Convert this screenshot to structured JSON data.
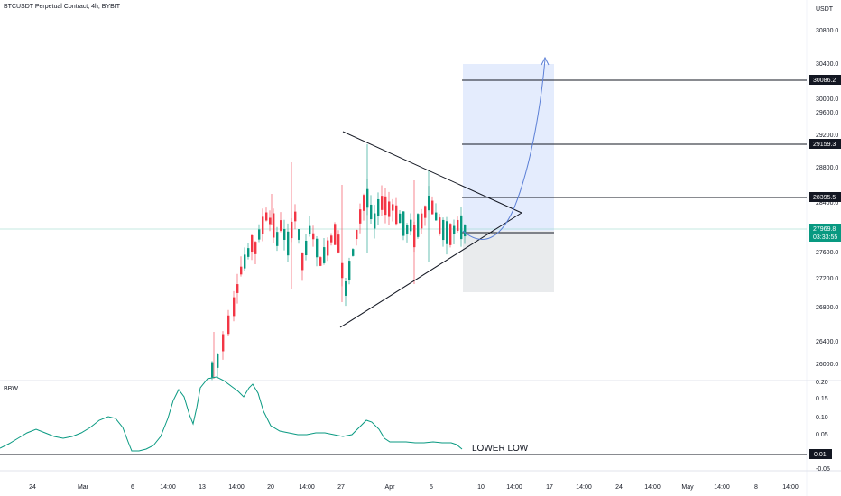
{
  "chart_info": {
    "title": "BTCUSDT Perpetual Contract, 4h, BYBIT",
    "currency": "USDT",
    "indicator_name": "BBW"
  },
  "price_axis": {
    "ticks": [
      "30800.0",
      "30400.0",
      "30000.0",
      "29600.0",
      "29200.0",
      "28800.0",
      "28400.0",
      "28000.0",
      "27600.0",
      "27200.0",
      "26800.0",
      "26400.0",
      "26000.0"
    ]
  },
  "bbw_axis": {
    "ticks": [
      "0.20",
      "0.15",
      "0.10",
      "0.05",
      "0.00",
      "-0.05"
    ]
  },
  "time_axis": {
    "ticks": [
      "24",
      "Mar",
      "6",
      "14:00",
      "13",
      "14:00",
      "20",
      "14:00",
      "27",
      "Apr",
      "5",
      "10",
      "14:00",
      "17",
      "14:00",
      "24",
      "14:00",
      "May",
      "14:00",
      "8",
      "14:00"
    ]
  },
  "badges": {
    "target1": "30086.2",
    "target2": "29159.3",
    "target3": "28395.5",
    "last_price": "27969.8",
    "countdown": "03:33:55",
    "bbw_level": "0.01"
  },
  "annotation": {
    "lower_low": "LOWER LOW"
  },
  "colors": {
    "up_candle": "#089981",
    "down_candle": "#f23645",
    "bbw_line": "#089981",
    "projection": "#5b7fd6",
    "long_zone": "#e4ecfd",
    "short_zone": "#e9ebed",
    "price_line": "#89d4c6"
  },
  "chart_data": {
    "type": "candlestick",
    "price_range": [
      25800,
      31000
    ],
    "levels": {
      "target_high": 30086.2,
      "target_mid": 29159.3,
      "target_low": 28395.5,
      "last_price": 27969.8
    },
    "triangle": {
      "upper_start": 29700,
      "lower_start": 26600,
      "apex": 28050
    },
    "bbw_lower_low_level": 0.01
  }
}
